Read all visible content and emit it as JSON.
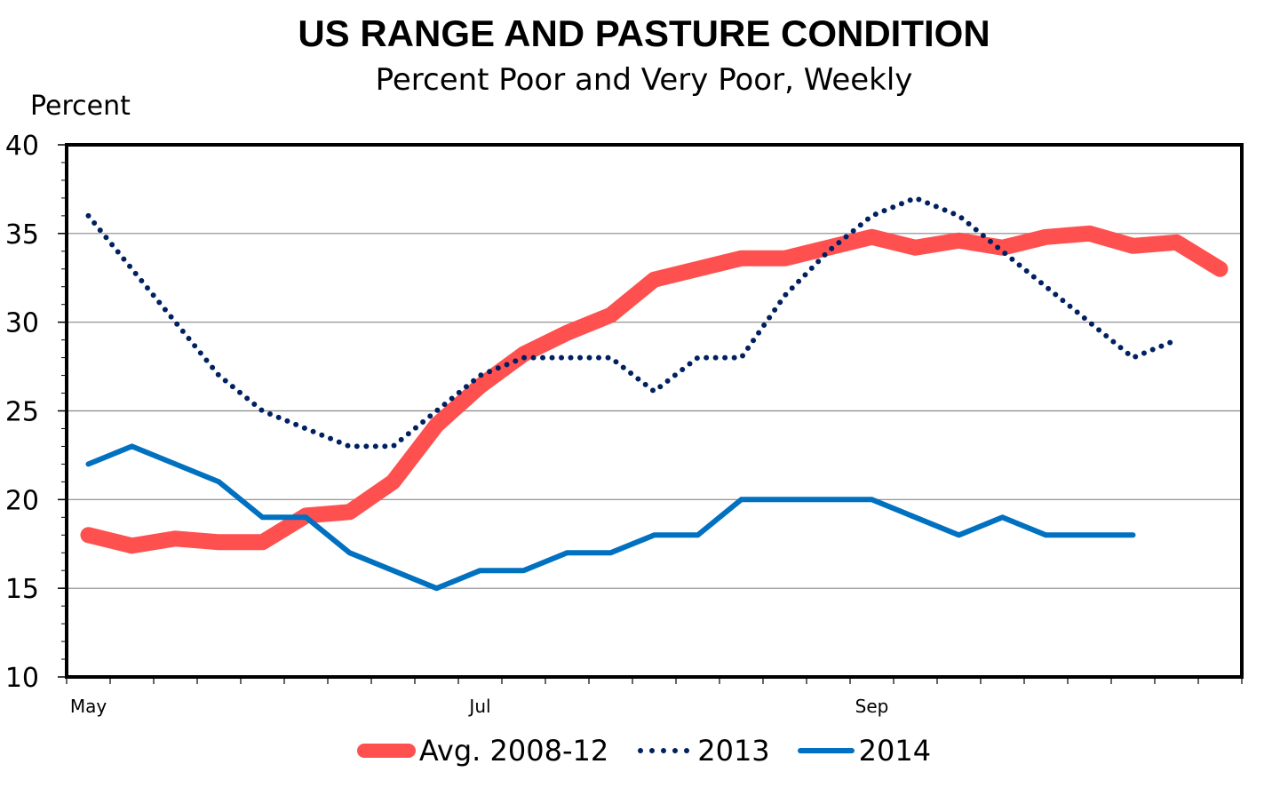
{
  "chart_data": {
    "type": "line",
    "title": "US RANGE AND PASTURE CONDITION",
    "subtitle": "Percent Poor and Very Poor, Weekly",
    "ylabel": "Percent",
    "xlabel": "",
    "ylim": [
      10,
      40
    ],
    "yticks": [
      10,
      15,
      20,
      25,
      30,
      35,
      40
    ],
    "grid": true,
    "legend_position": "bottom",
    "x_tick_labels": [
      {
        "index": 0,
        "label": "May"
      },
      {
        "index": 9,
        "label": "Jul"
      },
      {
        "index": 18,
        "label": "Sep"
      }
    ],
    "num_weeks": 27,
    "series": [
      {
        "name": "Avg. 2008-12",
        "color": "#FF5050",
        "style": "thick",
        "values": [
          18.0,
          17.4,
          17.8,
          17.6,
          17.6,
          19.1,
          19.3,
          21.0,
          24.2,
          26.4,
          28.2,
          29.4,
          30.4,
          32.4,
          33.0,
          33.6,
          33.6,
          34.2,
          34.8,
          34.2,
          34.6,
          34.2,
          34.8,
          35.0,
          34.3,
          34.5,
          33.0
        ]
      },
      {
        "name": "2013",
        "color": "#002060",
        "style": "dotted",
        "values": [
          36,
          33,
          30,
          27,
          25,
          24,
          23,
          23,
          25,
          27,
          28,
          28,
          28,
          26.1,
          28,
          28,
          31.5,
          34,
          36,
          37,
          36,
          34,
          32,
          30,
          28,
          29
        ]
      },
      {
        "name": "2014",
        "color": "#0070C0",
        "style": "solid",
        "values": [
          22,
          23,
          22,
          21,
          19,
          19,
          17,
          16,
          15,
          16,
          16,
          17,
          17,
          18,
          18,
          20,
          20,
          20,
          20,
          19,
          18,
          19,
          18,
          18,
          18
        ]
      }
    ]
  }
}
